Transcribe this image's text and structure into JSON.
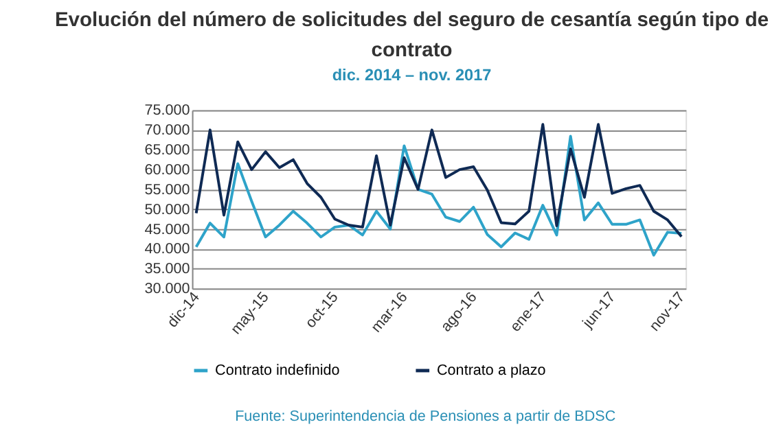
{
  "chart_data": {
    "type": "line",
    "title": "Evolución del número de solicitudes del seguro de cesantía según tipo de contrato",
    "subtitle": "dic. 2014  – nov. 2017",
    "categories": [
      "dic-14",
      null,
      null,
      null,
      null,
      "may-15",
      null,
      null,
      null,
      null,
      "oct-15",
      null,
      null,
      null,
      null,
      "mar-16",
      null,
      null,
      null,
      null,
      "ago-16",
      null,
      null,
      null,
      null,
      "ene-17",
      null,
      null,
      null,
      null,
      "jun-17",
      null,
      null,
      null,
      null,
      "nov-17"
    ],
    "series": [
      {
        "name": "Contrato indefinido",
        "color": "#2ea3c9",
        "values": [
          40500,
          46500,
          43000,
          61500,
          52000,
          43000,
          46000,
          49500,
          46500,
          43000,
          45500,
          46000,
          43500,
          49500,
          45000,
          66000,
          55000,
          53800,
          48000,
          46900,
          50500,
          43600,
          40500,
          44000,
          42400,
          51000,
          43500,
          68400,
          47300,
          51600,
          46200,
          46200,
          47300,
          38400,
          44200,
          43900
        ]
      },
      {
        "name": "Contrato a plazo",
        "color": "#0f2a54",
        "values": [
          49000,
          70000,
          48500,
          67000,
          60000,
          64500,
          60500,
          62500,
          56500,
          53000,
          47500,
          46000,
          45500,
          63500,
          46000,
          63000,
          55000,
          70000,
          58000,
          60000,
          60700,
          54800,
          46600,
          46300,
          49500,
          71400,
          45800,
          65200,
          53000,
          71400,
          54000,
          55200,
          56000,
          49500,
          47300,
          43100
        ]
      }
    ],
    "ylim": [
      30000,
      75000
    ],
    "yticks": [
      {
        "value": 30000,
        "label": "30.000"
      },
      {
        "value": 35000,
        "label": "35.000"
      },
      {
        "value": 40000,
        "label": "40.000"
      },
      {
        "value": 45000,
        "label": "45.000"
      },
      {
        "value": 50000,
        "label": "50.000"
      },
      {
        "value": 55000,
        "label": "55.000"
      },
      {
        "value": 60000,
        "label": "60.000"
      },
      {
        "value": 65000,
        "label": "65.000"
      },
      {
        "value": 70000,
        "label": "70.000"
      },
      {
        "value": 75000,
        "label": "75.000"
      }
    ],
    "grid": "y",
    "legend": "bottom",
    "marker": "none",
    "line_style": "solid",
    "annotations": [
      "Fuente: Superintendencia de Pensiones a partir de BDSC"
    ]
  }
}
